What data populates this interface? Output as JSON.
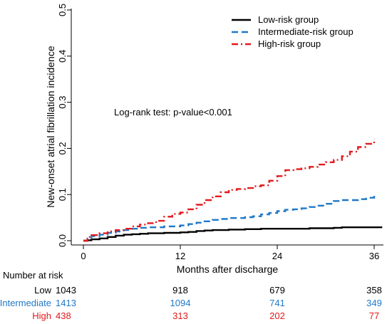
{
  "chart_data": {
    "type": "line",
    "xlabel": "Months after discharge",
    "ylabel": "New-onset atrial fibrillation incidence",
    "xlim": [
      0,
      37
    ],
    "ylim": [
      0,
      0.5
    ],
    "x_ticks": [
      0,
      12,
      24,
      36
    ],
    "y_ticks": [
      0.0,
      0.1,
      0.2,
      0.3,
      0.4,
      0.5
    ],
    "y_tick_labels": [
      "0.0",
      "0.1",
      "0.2",
      "0.3",
      "0.4",
      "0.5"
    ],
    "annotation": "Log-rank test: p-value<0.001",
    "legend_position": "top-right",
    "series": [
      {
        "name": "Low-risk group",
        "color": "#000000",
        "dash": "solid",
        "points": [
          [
            0,
            0
          ],
          [
            0.5,
            0.001
          ],
          [
            1,
            0.003
          ],
          [
            2,
            0.005
          ],
          [
            3,
            0.008
          ],
          [
            4,
            0.011
          ],
          [
            5,
            0.013
          ],
          [
            6,
            0.014
          ],
          [
            7,
            0.015
          ],
          [
            8,
            0.016
          ],
          [
            10,
            0.017
          ],
          [
            12,
            0.018
          ],
          [
            13,
            0.019
          ],
          [
            14,
            0.021
          ],
          [
            15,
            0.022
          ],
          [
            16,
            0.023
          ],
          [
            18,
            0.024
          ],
          [
            20,
            0.025
          ],
          [
            22,
            0.026
          ],
          [
            24,
            0.026
          ],
          [
            26,
            0.026
          ],
          [
            28,
            0.027
          ],
          [
            30,
            0.027
          ],
          [
            31,
            0.028
          ],
          [
            32,
            0.029
          ],
          [
            34,
            0.029
          ],
          [
            36,
            0.029
          ],
          [
            37,
            0.029
          ]
        ]
      },
      {
        "name": "Intermediate-risk group",
        "color": "#1f78c8",
        "dash": "dashed",
        "points": [
          [
            0,
            0
          ],
          [
            0.5,
            0.005
          ],
          [
            1,
            0.01
          ],
          [
            2,
            0.013
          ],
          [
            3,
            0.017
          ],
          [
            4,
            0.02
          ],
          [
            5,
            0.023
          ],
          [
            6,
            0.026
          ],
          [
            7,
            0.028
          ],
          [
            8,
            0.029
          ],
          [
            10,
            0.031
          ],
          [
            12,
            0.033
          ],
          [
            13,
            0.036
          ],
          [
            14,
            0.039
          ],
          [
            15,
            0.042
          ],
          [
            16,
            0.045
          ],
          [
            17,
            0.047
          ],
          [
            18,
            0.049
          ],
          [
            20,
            0.051
          ],
          [
            21,
            0.053
          ],
          [
            22,
            0.057
          ],
          [
            23,
            0.06
          ],
          [
            24,
            0.064
          ],
          [
            25,
            0.067
          ],
          [
            26,
            0.068
          ],
          [
            27,
            0.07
          ],
          [
            28,
            0.073
          ],
          [
            29,
            0.076
          ],
          [
            30,
            0.08
          ],
          [
            31,
            0.086
          ],
          [
            32,
            0.088
          ],
          [
            33,
            0.088
          ],
          [
            34,
            0.09
          ],
          [
            35,
            0.093
          ],
          [
            36,
            0.097
          ]
        ]
      },
      {
        "name": "High-risk group",
        "color": "#e31a1c",
        "dash": "dashdot",
        "points": [
          [
            0,
            0
          ],
          [
            0.5,
            0.008
          ],
          [
            1,
            0.012
          ],
          [
            2,
            0.016
          ],
          [
            3,
            0.02
          ],
          [
            4,
            0.023
          ],
          [
            5,
            0.026
          ],
          [
            6,
            0.031
          ],
          [
            7,
            0.035
          ],
          [
            8,
            0.038
          ],
          [
            9,
            0.043
          ],
          [
            10,
            0.052
          ],
          [
            11,
            0.058
          ],
          [
            12,
            0.061
          ],
          [
            13,
            0.068
          ],
          [
            14,
            0.078
          ],
          [
            15,
            0.088
          ],
          [
            16,
            0.096
          ],
          [
            17,
            0.105
          ],
          [
            18,
            0.11
          ],
          [
            19,
            0.112
          ],
          [
            20,
            0.114
          ],
          [
            21,
            0.118
          ],
          [
            22,
            0.12
          ],
          [
            23,
            0.13
          ],
          [
            24,
            0.14
          ],
          [
            25,
            0.153
          ],
          [
            26,
            0.155
          ],
          [
            27,
            0.157
          ],
          [
            28,
            0.16
          ],
          [
            29,
            0.165
          ],
          [
            30,
            0.17
          ],
          [
            31,
            0.175
          ],
          [
            32,
            0.183
          ],
          [
            33,
            0.193
          ],
          [
            34,
            0.203
          ],
          [
            35,
            0.21
          ],
          [
            36,
            0.221
          ]
        ]
      }
    ]
  },
  "risk_table": {
    "title": "Number at risk",
    "rows": [
      {
        "label": "Low",
        "color": "#000000",
        "values": [
          "1043",
          "918",
          "679",
          "358"
        ]
      },
      {
        "label": "Intermediate",
        "color": "#1f78c8",
        "values": [
          "1413",
          "1094",
          "741",
          "349"
        ]
      },
      {
        "label": "High",
        "color": "#e31a1c",
        "values": [
          "438",
          "313",
          "202",
          "77"
        ]
      }
    ]
  }
}
